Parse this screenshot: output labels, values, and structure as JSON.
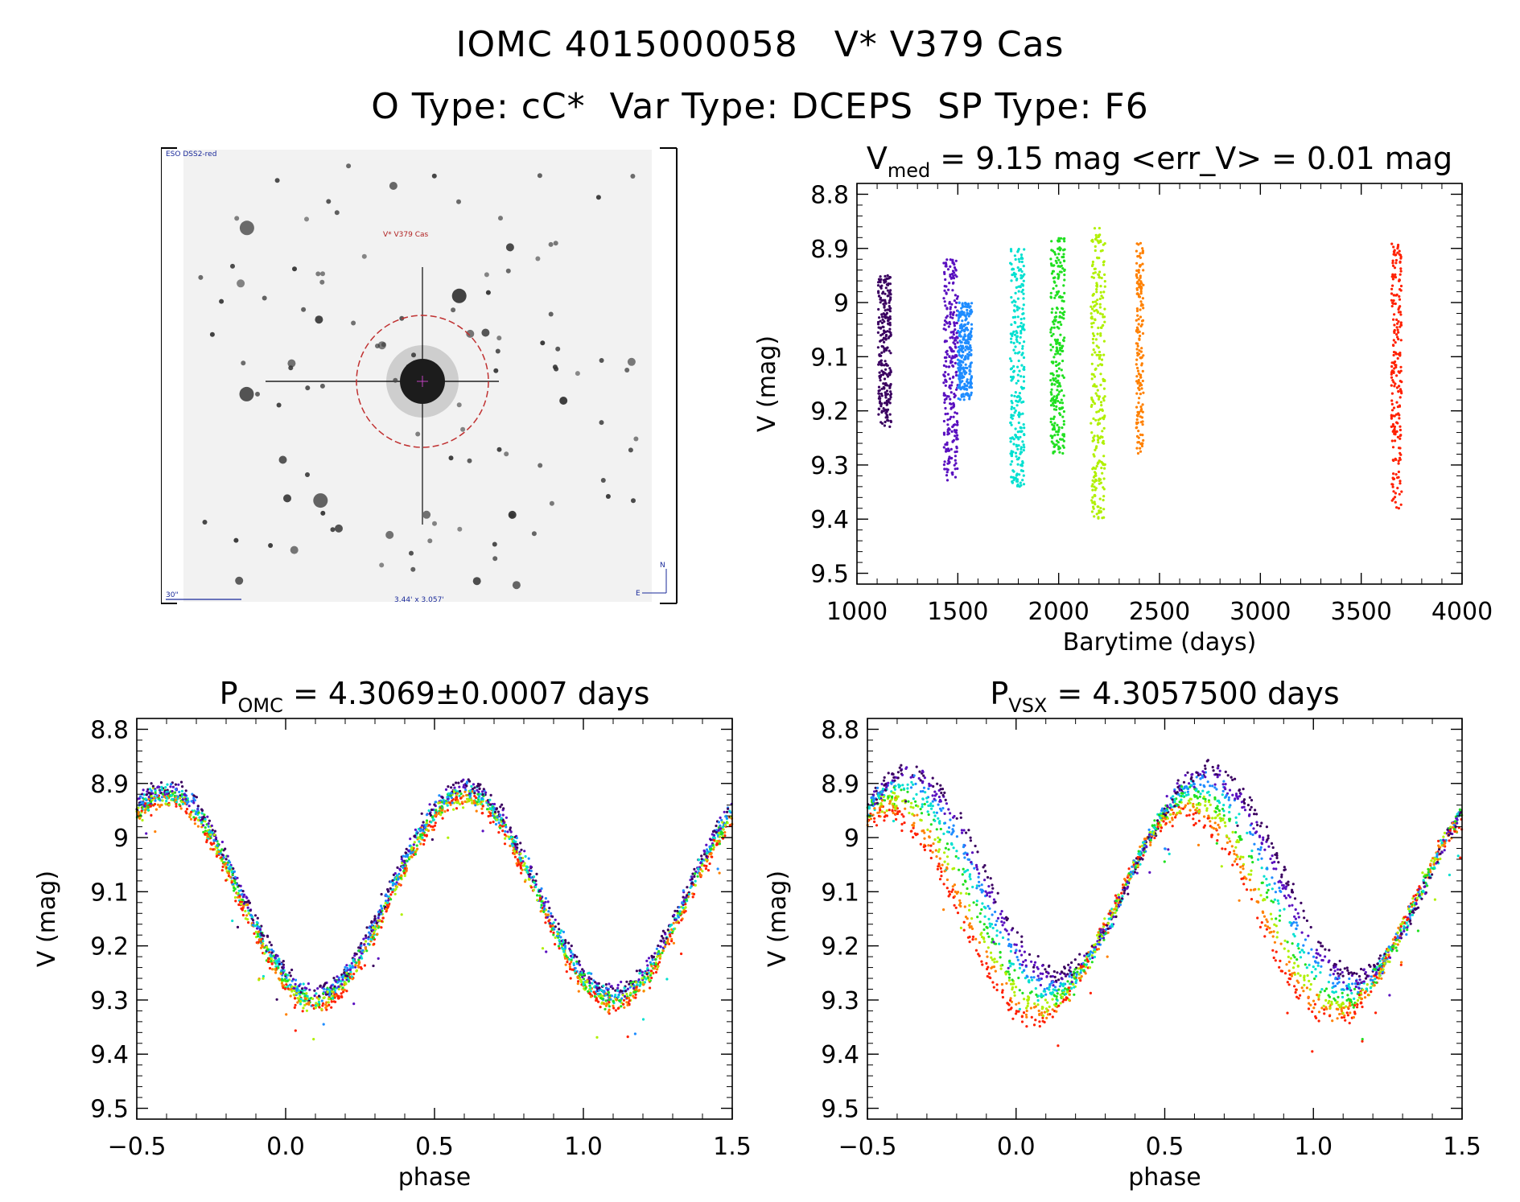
{
  "header": {
    "line1": "IOMC 4015000058   V* V379 Cas",
    "line2": "O Type: cC*  Var Type: DCEPS  SP Type: F6"
  },
  "finder_chart": {
    "survey_label": "ESO DSS2-red",
    "target_label": "V* V379 Cas",
    "scale_label": "30\"",
    "size_label": "3.44' x 3.057'"
  },
  "colors": {
    "axis": "#000000",
    "series": [
      "#3a0060",
      "#5a10c0",
      "#1e8cff",
      "#00e0d0",
      "#20e020",
      "#b0f000",
      "#ff8000",
      "#ff2000"
    ]
  },
  "chart_data": [
    {
      "id": "lightcurve",
      "type": "scatter",
      "title_parts": [
        "V",
        "med",
        " = 9.15 mag <err_V> = 0.01 mag"
      ],
      "xlabel": "Barytime (days)",
      "ylabel": "V (mag)",
      "xlim": [
        1000,
        4000
      ],
      "ylim": [
        9.52,
        8.78
      ],
      "xticks": [
        1000,
        1500,
        2000,
        2500,
        3000,
        3500,
        4000
      ],
      "yticks": [
        8.8,
        8.9,
        9.0,
        9.1,
        9.2,
        9.3,
        9.4,
        9.5
      ],
      "series": [
        {
          "color_index": 0,
          "x_range": [
            1105,
            1170
          ],
          "y_range": [
            8.95,
            9.23
          ]
        },
        {
          "color_index": 1,
          "x_range": [
            1430,
            1500
          ],
          "y_range": [
            8.92,
            9.33
          ]
        },
        {
          "color_index": 2,
          "x_range": [
            1500,
            1570
          ],
          "y_range": [
            9.0,
            9.18
          ]
        },
        {
          "color_index": 3,
          "x_range": [
            1760,
            1830
          ],
          "y_range": [
            8.9,
            9.34
          ]
        },
        {
          "color_index": 4,
          "x_range": [
            1960,
            2030
          ],
          "y_range": [
            8.88,
            9.28
          ]
        },
        {
          "color_index": 5,
          "x_range": [
            2160,
            2230
          ],
          "y_range": [
            8.86,
            9.4
          ]
        },
        {
          "color_index": 6,
          "x_range": [
            2385,
            2420
          ],
          "y_range": [
            8.89,
            9.28
          ]
        },
        {
          "color_index": 7,
          "x_range": [
            3650,
            3700
          ],
          "y_range": [
            8.89,
            9.38
          ]
        }
      ]
    },
    {
      "id": "phase-omc",
      "type": "scatter",
      "title_parts": [
        "P",
        "OMC",
        " = 4.3069±0.0007 days"
      ],
      "xlabel": "phase",
      "ylabel": "V (mag)",
      "xlim": [
        -0.5,
        1.5
      ],
      "ylim": [
        9.52,
        8.78
      ],
      "xticks": [
        -0.5,
        0.0,
        0.5,
        1.0,
        1.5
      ],
      "xtick_labels": [
        "−0.5",
        "0.0",
        "0.5",
        "1.0",
        "1.5"
      ],
      "yticks": [
        8.8,
        8.9,
        9.0,
        9.1,
        9.2,
        9.3,
        9.4,
        9.5
      ],
      "curve": {
        "max_phase": 0.6,
        "min_phase": 0.1,
        "max_mag": 8.92,
        "min_mag": 9.3
      }
    },
    {
      "id": "phase-vsx",
      "type": "scatter",
      "title_parts": [
        "P",
        "VSX",
        " = 4.3057500 days"
      ],
      "xlabel": "phase",
      "ylabel": "V (mag)",
      "xlim": [
        -0.5,
        1.5
      ],
      "ylim": [
        9.52,
        8.78
      ],
      "xticks": [
        -0.5,
        0.0,
        0.5,
        1.0,
        1.5
      ],
      "xtick_labels": [
        "−0.5",
        "0.0",
        "0.5",
        "1.0",
        "1.5"
      ],
      "yticks": [
        8.8,
        8.9,
        9.0,
        9.1,
        9.2,
        9.3,
        9.4,
        9.5
      ],
      "curve": {
        "max_phase": 0.6,
        "min_phase": 0.1,
        "max_mag": 8.92,
        "min_mag": 9.3
      }
    }
  ]
}
